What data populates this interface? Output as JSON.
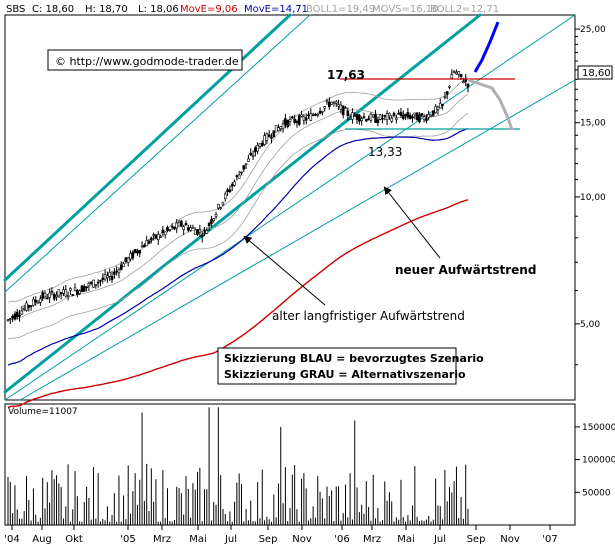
{
  "header": {
    "symbol": "SBS",
    "close_label": "C: 18,60",
    "high_label": "H: 18,70",
    "low_label": "L: 18,06",
    "move_label": "MovE=9,06",
    "move2_label": "MovE=14,71",
    "boll1_label": "BOLL1=19,49",
    "movs_label": "MOVS=16,10",
    "boll2_label": "BOLL2=12,71"
  },
  "watermark": "© http://www.godmode-trader.de",
  "annotations": {
    "resistance": "17,63",
    "support": "13,33",
    "new_trend": "neuer Aufwärtstrend",
    "old_trend": "alter langfristiger Aufwärtstrend",
    "legend_blue": "Skizzierung BLAU = bevorzugtes Szenario",
    "legend_grey": "Skizzierung GRAU = Alternativszenario"
  },
  "price_tag": "18,60",
  "volume_label": "Volume=11007",
  "colors": {
    "candles": "#000000",
    "ema_fast": "#cc0000",
    "ema_slow": "#0000aa",
    "bollinger": "#a0a0a0",
    "channel": "#00a0a0",
    "scenario_blue": "#0000ff",
    "scenario_grey": "#b0b0b0",
    "level_line": "#cc0000",
    "support_line": "#00a0a0"
  },
  "chart_data": [
    {
      "type": "candlestick",
      "scale": "log",
      "y_ticks": [
        {
          "value": 25,
          "label": "25,00"
        },
        {
          "value": 20,
          "label": "20,00"
        },
        {
          "value": 15,
          "label": "15,00"
        },
        {
          "value": 10,
          "label": "10,00"
        },
        {
          "value": 5,
          "label": "5,00"
        }
      ],
      "x_ticks": [
        "'04",
        "Aug",
        "Okt",
        "'05",
        "Mrz",
        "Mai",
        "Jul",
        "Sep",
        "Nov",
        "'06",
        "Mrz",
        "Mai",
        "Jul",
        "Sep",
        "Nov",
        "'07"
      ],
      "levels": {
        "resistance": 17.63,
        "support": 13.33
      },
      "last": 18.6
    },
    {
      "type": "bar",
      "series_name": "Volume",
      "y_ticks": [
        {
          "value": 150000,
          "label": "150000"
        },
        {
          "value": 100000,
          "label": "100000"
        },
        {
          "value": 50000,
          "label": "50000"
        }
      ]
    }
  ]
}
